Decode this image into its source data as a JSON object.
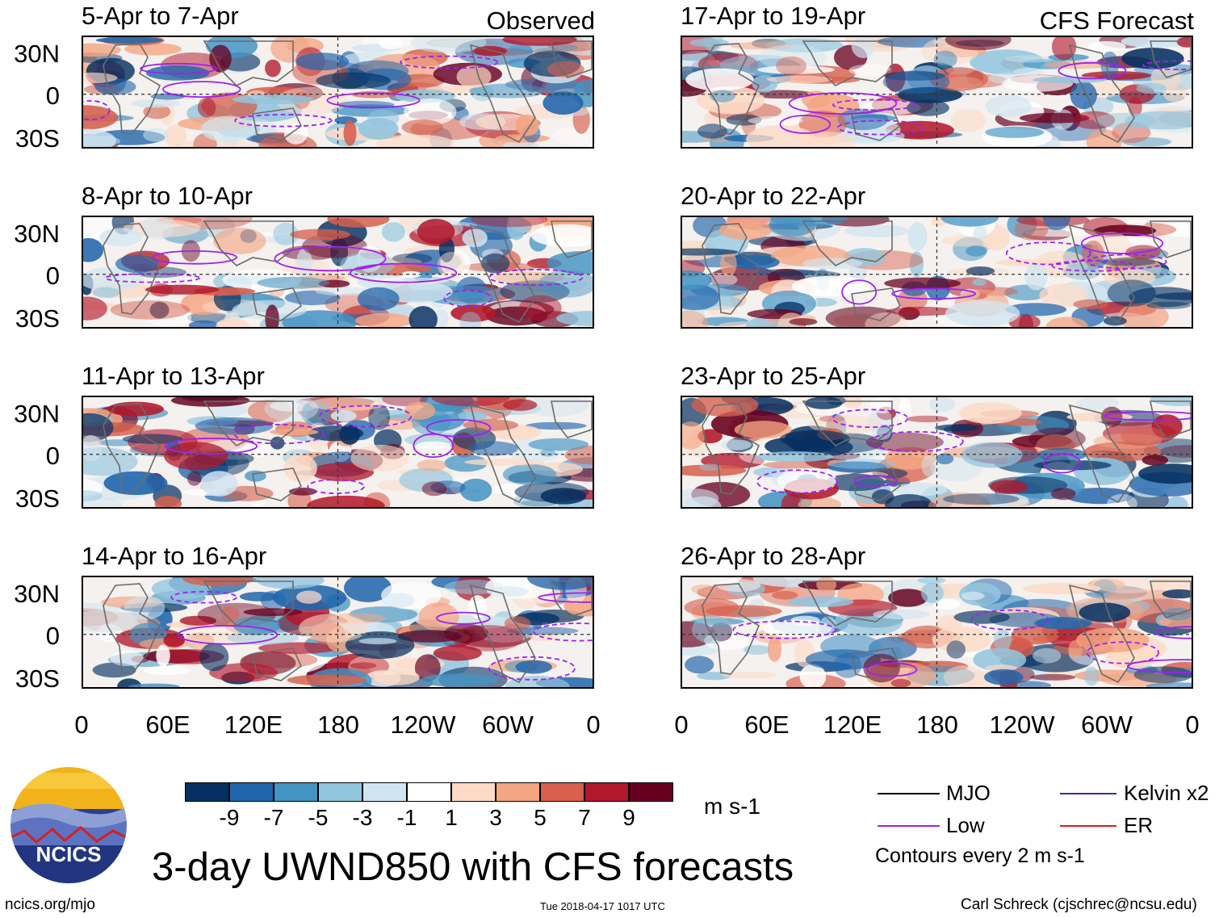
{
  "labels": {
    "observed": "Observed",
    "forecast": "CFS Forecast"
  },
  "observed_panels": [
    {
      "title": "5-Apr to 7-Apr"
    },
    {
      "title": "8-Apr to 10-Apr"
    },
    {
      "title": "11-Apr to 13-Apr"
    },
    {
      "title": "14-Apr to 16-Apr"
    }
  ],
  "forecast_panels": [
    {
      "title": "17-Apr to 19-Apr"
    },
    {
      "title": "20-Apr to 22-Apr"
    },
    {
      "title": "23-Apr to 25-Apr"
    },
    {
      "title": "26-Apr to 28-Apr"
    }
  ],
  "lat_labels": [
    "30N",
    "0",
    "30S"
  ],
  "lon_labels": [
    "0",
    "60E",
    "120E",
    "180",
    "120W",
    "60W",
    "0"
  ],
  "colorbar": {
    "colors": [
      "#053061",
      "#2166ac",
      "#4393c3",
      "#92c5de",
      "#d1e5f0",
      "#ffffff",
      "#fddbc7",
      "#f4a582",
      "#d6604d",
      "#b2182b",
      "#67001f"
    ],
    "ticks": [
      "-9",
      "-7",
      "-5",
      "-3",
      "-1",
      "1",
      "3",
      "5",
      "7",
      "9"
    ],
    "units": "m s-1"
  },
  "legend": {
    "items": [
      {
        "label": "MJO",
        "color": "#000000"
      },
      {
        "label": "Kelvin x2",
        "color": "#3a2aa8"
      },
      {
        "label": "Low",
        "color": "#a020f0"
      },
      {
        "label": "ER",
        "color": "#d42020"
      }
    ],
    "contours_note": "Contours every 2 m s-1"
  },
  "logo_text": "NCICS",
  "main_title": "3-day UWND850 with CFS forecasts",
  "footer": {
    "url": "ncics.org/mjo",
    "timestamp": "Tue 2018-04-17 1017 UTC",
    "credit": "Carl Schreck (cjschrec@ncsu.edu)"
  }
}
